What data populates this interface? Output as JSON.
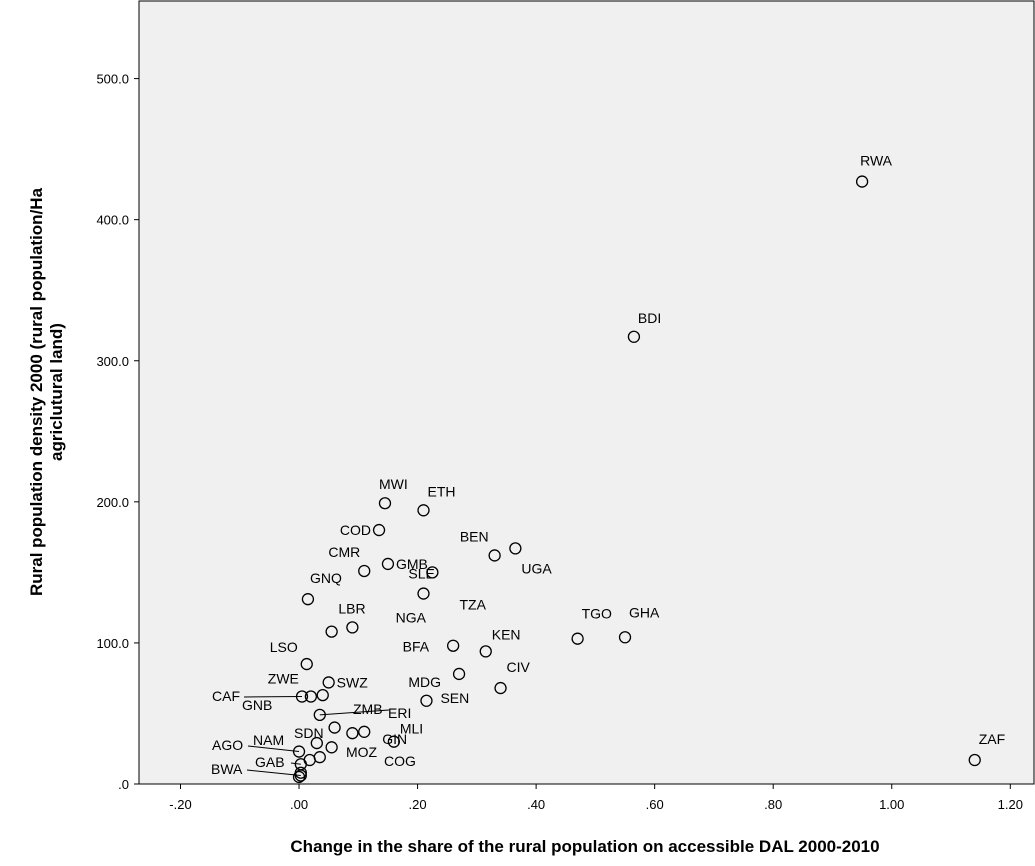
{
  "chart_data": {
    "type": "scatter",
    "xlabel": "Change in the share of the rural population on accessible DAL 2000-2010",
    "ylabel_lines": [
      "Rural population density 2000 (rural population/Ha",
      "agriclutural land)"
    ],
    "xlim": [
      -0.27,
      1.24
    ],
    "ylim": [
      0,
      555
    ],
    "x_ticks": [
      {
        "value": -0.2,
        "label": "-.20"
      },
      {
        "value": 0.0,
        "label": ".00"
      },
      {
        "value": 0.2,
        "label": ".20"
      },
      {
        "value": 0.4,
        "label": ".40"
      },
      {
        "value": 0.6,
        "label": ".60"
      },
      {
        "value": 0.8,
        "label": ".80"
      },
      {
        "value": 1.0,
        "label": "1.00"
      },
      {
        "value": 1.2,
        "label": "1.20"
      }
    ],
    "y_ticks": [
      {
        "value": 0,
        "label": ".0"
      },
      {
        "value": 100,
        "label": "100.0"
      },
      {
        "value": 200,
        "label": "200.0"
      },
      {
        "value": 300,
        "label": "300.0"
      },
      {
        "value": 400,
        "label": "400.0"
      },
      {
        "value": 500,
        "label": "500.0"
      }
    ],
    "grid": false,
    "points": [
      {
        "label": "RWA",
        "x": 0.95,
        "y": 427
      },
      {
        "label": "BDI",
        "x": 0.565,
        "y": 317
      },
      {
        "label": "MWI",
        "x": 0.145,
        "y": 199
      },
      {
        "label": "ETH",
        "x": 0.21,
        "y": 194
      },
      {
        "label": "COD",
        "x": 0.135,
        "y": 180
      },
      {
        "label": "GMB",
        "x": 0.15,
        "y": 156
      },
      {
        "label": "BEN",
        "x": 0.33,
        "y": 162
      },
      {
        "label": "UGA",
        "x": 0.365,
        "y": 167
      },
      {
        "label": "CMR",
        "x": 0.11,
        "y": 151
      },
      {
        "label": "SLE",
        "x": 0.225,
        "y": 150
      },
      {
        "label": "GNQ",
        "x": 0.015,
        "y": 131
      },
      {
        "label": "TZA",
        "x": 0.21,
        "y": 135
      },
      {
        "label": "LBR",
        "x": 0.09,
        "y": 111
      },
      {
        "label": "NGA",
        "x": 0.055,
        "y": 108
      },
      {
        "label": "BFA",
        "x": 0.26,
        "y": 98
      },
      {
        "label": "KEN",
        "x": 0.315,
        "y": 94
      },
      {
        "label": "TGO",
        "x": 0.47,
        "y": 103
      },
      {
        "label": "GHA",
        "x": 0.55,
        "y": 104
      },
      {
        "label": "LSO",
        "x": 0.013,
        "y": 85
      },
      {
        "label": "CIV",
        "x": 0.34,
        "y": 68
      },
      {
        "label": "SWZ",
        "x": 0.05,
        "y": 72
      },
      {
        "label": "MDG",
        "x": 0.27,
        "y": 78
      },
      {
        "label": "ZWE",
        "x": 0.02,
        "y": 62
      },
      {
        "label": "CAF",
        "x": 0.005,
        "y": 62
      },
      {
        "label": "GNB",
        "x": 0.04,
        "y": 63
      },
      {
        "label": "SEN",
        "x": 0.215,
        "y": 59
      },
      {
        "label": "ZMB",
        "x": 0.035,
        "y": 49
      },
      {
        "label": "ERI",
        "x": 0.06,
        "y": 40
      },
      {
        "label": "GIN",
        "x": 0.11,
        "y": 37
      },
      {
        "label": "SDN",
        "x": 0.09,
        "y": 36
      },
      {
        "label": "NAM",
        "x": 0.055,
        "y": 26
      },
      {
        "label": "MLI",
        "x": 0.16,
        "y": 30
      },
      {
        "label": "AGO",
        "x": 0.0,
        "y": 23
      },
      {
        "label": "MOZ",
        "x": 0.035,
        "y": 19
      },
      {
        "label": "COG",
        "x": 0.018,
        "y": 17
      },
      {
        "label": "GAB",
        "x": 0.003,
        "y": 14
      },
      {
        "label": "BWA",
        "x": 0.003,
        "y": 6
      },
      {
        "label": "ZAF",
        "x": 1.14,
        "y": 17
      }
    ],
    "extra_points": [
      {
        "x": 0.03,
        "y": 29
      },
      {
        "x": 0.0,
        "y": 5
      },
      {
        "x": 0.003,
        "y": 8
      }
    ]
  }
}
